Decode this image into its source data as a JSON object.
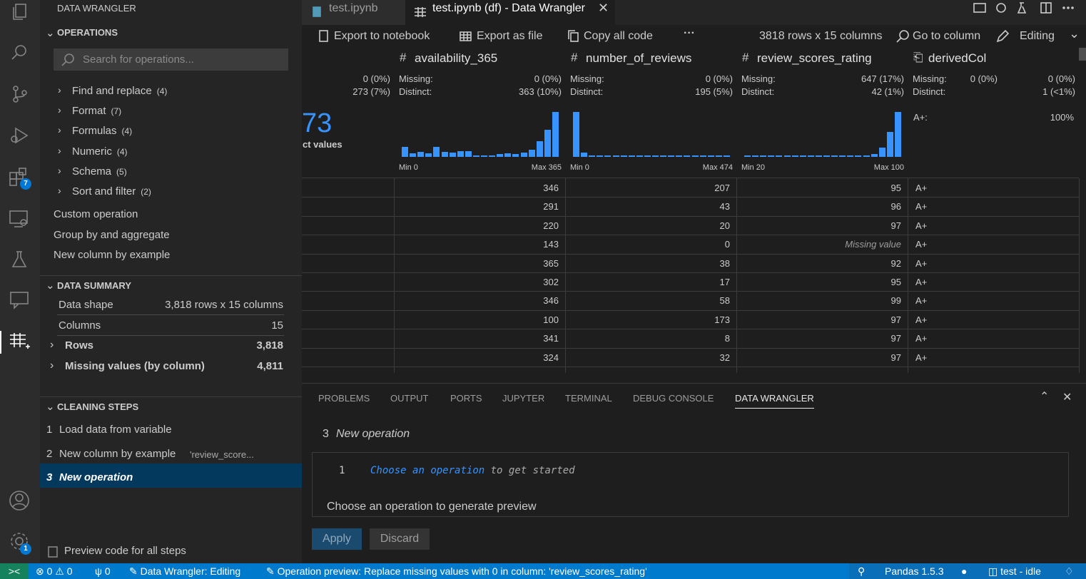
{
  "tabs": [
    {
      "label": "test.ipynb"
    },
    {
      "label": "test.ipynb (df) - Data Wrangler"
    }
  ],
  "activity_bar": {
    "badges": [
      "7",
      "1"
    ]
  },
  "sidebar": {
    "title": "DATA WRANGLER",
    "operations": {
      "header": "OPERATIONS",
      "search_placeholder": "Search for operations...",
      "groups": [
        {
          "label": "Find and replace",
          "count": "(4)"
        },
        {
          "label": "Format",
          "count": "(7)"
        },
        {
          "label": "Formulas",
          "count": "(4)"
        },
        {
          "label": "Numeric",
          "count": "(4)"
        },
        {
          "label": "Schema",
          "count": "(5)"
        },
        {
          "label": "Sort and filter",
          "count": "(2)"
        }
      ],
      "items": [
        "Custom operation",
        "Group by and aggregate",
        "New column by example"
      ]
    },
    "data_summary": {
      "header": "DATA SUMMARY",
      "rows": [
        {
          "label": "Data shape",
          "value": "3,818 rows x 15 columns"
        },
        {
          "label": "Columns",
          "value": "15"
        },
        {
          "label": "Rows",
          "value": "3,818"
        },
        {
          "label": "Missing values (by column)",
          "value": "4,811"
        }
      ]
    },
    "cleaning_steps": {
      "header": "CLEANING STEPS",
      "steps": [
        {
          "number": "1",
          "label": "Load data from variable"
        },
        {
          "number": "2",
          "label": "New column by example",
          "detail": "'review_score..."
        },
        {
          "number": "3",
          "label": "New operation"
        }
      ]
    },
    "preview_code": "Preview code for all steps"
  },
  "toolbar": {
    "export_notebook": "Export to notebook",
    "export_file": "Export as file",
    "copy_code": "Copy all code",
    "more": "···",
    "shape": "3818 rows x 15 columns",
    "go_to_column": "Go to column",
    "mode": "Editing"
  },
  "grid": {
    "missing_label": "Missing:",
    "distinct_label": "Distinct:",
    "partial_column": {
      "missing": "0 (0%)",
      "distinct": "273 (7%)",
      "big_value": "73",
      "big_caption": "ct values"
    },
    "columns": [
      {
        "name": "availability_365",
        "missing": "0 (0%)",
        "distinct": "363 (10%)",
        "min": "Min 0",
        "max": "Max 365",
        "histogram": [
          22,
          8,
          11,
          8,
          22,
          11,
          9,
          13,
          13,
          3,
          3,
          3,
          6,
          8,
          6,
          10,
          16,
          35,
          60,
          100
        ]
      },
      {
        "name": "number_of_reviews",
        "missing": "0 (0%)",
        "distinct": "195 (5%)",
        "min": "Min 0",
        "max": "Max 474",
        "histogram": [
          100,
          10,
          3,
          3,
          3,
          3,
          3,
          3,
          3,
          3,
          3,
          3,
          3,
          3,
          3,
          3,
          3,
          3,
          3,
          3
        ]
      },
      {
        "name": "review_scores_rating",
        "missing": "647 (17%)",
        "distinct": "42 (1%)",
        "min": "Min 20",
        "max": "Max 100",
        "histogram": [
          3,
          3,
          3,
          3,
          3,
          3,
          3,
          3,
          3,
          3,
          3,
          3,
          3,
          3,
          3,
          3,
          6,
          20,
          55,
          100
        ]
      },
      {
        "name": "derivedCol",
        "missing": "0 (0%)",
        "distinct": "1 (<1%)",
        "top_value": "A+:",
        "top_share": "100%"
      }
    ],
    "rows": [
      [
        346,
        207,
        95,
        "A+"
      ],
      [
        291,
        43,
        96,
        "A+"
      ],
      [
        220,
        20,
        97,
        "A+"
      ],
      [
        143,
        0,
        "Missing value",
        "A+"
      ],
      [
        365,
        38,
        92,
        "A+"
      ],
      [
        302,
        17,
        95,
        "A+"
      ],
      [
        346,
        58,
        99,
        "A+"
      ],
      [
        100,
        173,
        97,
        "A+"
      ],
      [
        341,
        8,
        97,
        "A+"
      ],
      [
        324,
        32,
        97,
        "A+"
      ]
    ]
  },
  "panel": {
    "tabs": [
      "PROBLEMS",
      "OUTPUT",
      "PORTS",
      "JUPYTER",
      "TERMINAL",
      "DEBUG CONSOLE",
      "DATA WRANGLER"
    ],
    "step_number": "3",
    "step_title": "New operation",
    "code": {
      "line_number": "1",
      "tokens": [
        "Choose",
        "an",
        "operation",
        "to get started"
      ]
    },
    "preview_message": "Choose an operation to generate preview",
    "apply": "Apply",
    "discard": "Discard"
  },
  "status_bar": {
    "errors": "0",
    "warnings": "0",
    "ports": "0",
    "mode": "Data Wrangler: Editing",
    "operation": "Operation preview: Replace missing values with 0 in column: 'review_scores_rating'",
    "pandas": "Pandas 1.5.3",
    "kernel": "test - idle"
  }
}
